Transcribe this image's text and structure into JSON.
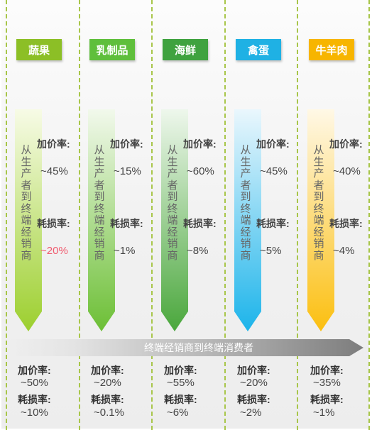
{
  "columns": [
    {
      "header": "蔬果",
      "header_color": "#8cbf26",
      "arrow_top": "#f7fbe6",
      "arrow_bottom": "#9ccf2e",
      "markup_label": "加价率:",
      "markup_value": "~45%",
      "loss_label": "耗损率:",
      "loss_value": "~20%",
      "loss_highlight": true,
      "consumer_markup_label": "加价率:",
      "consumer_markup_value": "~50%",
      "consumer_loss_label": "耗损率:",
      "consumer_loss_value": "~10%"
    },
    {
      "header": "乳制品",
      "header_color": "#5fbf3c",
      "arrow_top": "#f2f9ec",
      "arrow_bottom": "#6cbf35",
      "markup_label": "加价率:",
      "markup_value": "~15%",
      "loss_label": "耗损率:",
      "loss_value": "~1%",
      "loss_highlight": false,
      "consumer_markup_label": "加价率:",
      "consumer_markup_value": "~20%",
      "consumer_loss_label": "耗损率:",
      "consumer_loss_value": "~0.1%"
    },
    {
      "header": "海鲜",
      "header_color": "#3fa23f",
      "arrow_top": "#eef7ec",
      "arrow_bottom": "#4aa73c",
      "markup_label": "加价率:",
      "markup_value": "~60%",
      "loss_label": "耗损率:",
      "loss_value": "~8%",
      "loss_highlight": false,
      "consumer_markup_label": "加价率:",
      "consumer_markup_value": "~55%",
      "consumer_loss_label": "耗损率:",
      "consumer_loss_value": "~6%"
    },
    {
      "header": "禽蛋",
      "header_color": "#1fb1e4",
      "arrow_top": "#eaf7fd",
      "arrow_bottom": "#1cb4ea",
      "markup_label": "加价率:",
      "markup_value": "~45%",
      "loss_label": "耗损率:",
      "loss_value": "~5%",
      "loss_highlight": false,
      "consumer_markup_label": "加价率:",
      "consumer_markup_value": "~20%",
      "consumer_loss_label": "耗损率:",
      "consumer_loss_value": "~2%"
    },
    {
      "header": "牛羊肉",
      "header_color": "#f7b500",
      "arrow_top": "#fff8e6",
      "arrow_bottom": "#fbbf10",
      "markup_label": "加价率:",
      "markup_value": "~40%",
      "loss_label": "耗损率:",
      "loss_value": "~4%",
      "loss_highlight": false,
      "consumer_markup_label": "加价率:",
      "consumer_markup_value": "~35%",
      "consumer_loss_label": "耗损率:",
      "consumer_loss_value": "~1%"
    }
  ],
  "vertical_text": "从生产者到终端经销商",
  "bottom_bar_text": "终端经销商到终端消费者",
  "divider_color": "#a8c64a",
  "highlight_color": "#f05a6e"
}
